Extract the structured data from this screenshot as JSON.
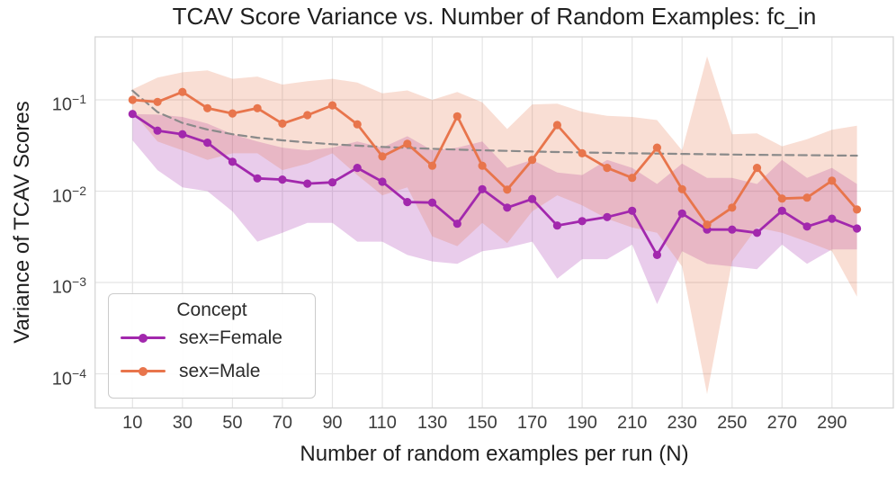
{
  "title": "TCAV Score Variance vs. Number of Random Examples: fc_in",
  "axes": {
    "xlabel": "Number of random examples per run (N)",
    "ylabel": "Variance of TCAV Scores",
    "x_ticks": [
      10,
      30,
      50,
      70,
      90,
      110,
      130,
      150,
      170,
      190,
      210,
      230,
      250,
      270,
      290
    ],
    "y_ticks": [
      {
        "value": 0.1,
        "mantissa": "10",
        "exponent": "−1"
      },
      {
        "value": 0.01,
        "mantissa": "10",
        "exponent": "−2"
      },
      {
        "value": 0.001,
        "mantissa": "10",
        "exponent": "−3"
      },
      {
        "value": 0.0001,
        "mantissa": "10",
        "exponent": "−4"
      }
    ]
  },
  "legend": {
    "title": "Concept",
    "entries": [
      {
        "label": "sex=Female",
        "color": "#a228ad"
      },
      {
        "label": "sex=Male",
        "color": "#e8754c"
      }
    ]
  },
  "chart_data": {
    "type": "line",
    "title": "TCAV Score Variance vs. Number of Random Examples: fc_in",
    "xlabel": "Number of random examples per run (N)",
    "ylabel": "Variance of TCAV Scores",
    "yscale": "log",
    "xlim": [
      -5,
      315
    ],
    "ylim": [
      4.2e-05,
      0.49
    ],
    "grid": true,
    "legend_position": "lower left",
    "x": [
      10,
      20,
      30,
      40,
      50,
      60,
      70,
      80,
      90,
      100,
      110,
      120,
      130,
      140,
      150,
      160,
      170,
      180,
      190,
      200,
      210,
      220,
      230,
      240,
      250,
      260,
      270,
      280,
      290,
      300
    ],
    "series": [
      {
        "name": "sex=Female",
        "color": "#a228ad",
        "marker": true,
        "dashed": false,
        "values": [
          0.07,
          0.046,
          0.042,
          0.034,
          0.021,
          0.0138,
          0.0134,
          0.0121,
          0.0125,
          0.018,
          0.0127,
          0.0076,
          0.0075,
          0.0044,
          0.0105,
          0.0066,
          0.0082,
          0.0042,
          0.0047,
          0.0052,
          0.0061,
          0.002,
          0.0057,
          0.0038,
          0.0038,
          0.0035,
          0.0061,
          0.0041,
          0.005,
          0.0039
        ],
        "band_upper": [
          0.07,
          0.069,
          0.065,
          0.055,
          0.042,
          0.035,
          0.03,
          0.028,
          0.03,
          0.035,
          0.03,
          0.04,
          0.028,
          0.03,
          0.035,
          0.018,
          0.022,
          0.016,
          0.015,
          0.022,
          0.018,
          0.012,
          0.02,
          0.014,
          0.014,
          0.012,
          0.022,
          0.014,
          0.018,
          0.012
        ],
        "band_lower": [
          0.036,
          0.017,
          0.011,
          0.01,
          0.006,
          0.0028,
          0.0035,
          0.0045,
          0.0045,
          0.0028,
          0.0028,
          0.002,
          0.0017,
          0.0016,
          0.0022,
          0.0024,
          0.0028,
          0.0011,
          0.0018,
          0.0018,
          0.0026,
          0.00058,
          0.0022,
          0.0016,
          0.0015,
          0.0014,
          0.0026,
          0.0016,
          0.0023,
          0.0023
        ]
      },
      {
        "name": "sex=Male",
        "color": "#e8754c",
        "marker": true,
        "dashed": false,
        "values": [
          0.1,
          0.095,
          0.122,
          0.081,
          0.071,
          0.081,
          0.055,
          0.068,
          0.087,
          0.054,
          0.024,
          0.033,
          0.019,
          0.066,
          0.019,
          0.0104,
          0.022,
          0.053,
          0.026,
          0.018,
          0.014,
          0.03,
          0.0105,
          0.0043,
          0.0066,
          0.018,
          0.0083,
          0.0085,
          0.013,
          0.0063
        ],
        "band_upper": [
          0.13,
          0.175,
          0.2,
          0.21,
          0.17,
          0.18,
          0.147,
          0.16,
          0.17,
          0.155,
          0.118,
          0.127,
          0.1,
          0.122,
          0.094,
          0.048,
          0.089,
          0.091,
          0.074,
          0.067,
          0.065,
          0.06,
          0.028,
          0.3,
          0.042,
          0.043,
          0.031,
          0.037,
          0.047,
          0.052
        ],
        "band_lower": [
          0.074,
          0.035,
          0.028,
          0.022,
          0.026,
          0.026,
          0.017,
          0.02,
          0.026,
          0.015,
          0.009,
          0.011,
          0.0032,
          0.0025,
          0.0045,
          0.0027,
          0.006,
          0.009,
          0.007,
          0.005,
          0.004,
          0.0035,
          0.0015,
          6e-05,
          0.0017,
          0.004,
          0.0035,
          0.0028,
          0.0022,
          0.0007
        ]
      },
      {
        "name": "dashed_reference",
        "color": "#8a8a8a",
        "marker": false,
        "dashed": true,
        "values": [
          0.126,
          0.0735,
          0.056,
          0.0473,
          0.042,
          0.0385,
          0.036,
          0.0341,
          0.0327,
          0.0315,
          0.0305,
          0.0298,
          0.0291,
          0.0285,
          0.028,
          0.0276,
          0.0272,
          0.0268,
          0.0265,
          0.0263,
          0.026,
          0.0258,
          0.0256,
          0.0254,
          0.0252,
          0.025,
          0.0249,
          0.0248,
          0.0246,
          0.0245
        ]
      }
    ]
  }
}
